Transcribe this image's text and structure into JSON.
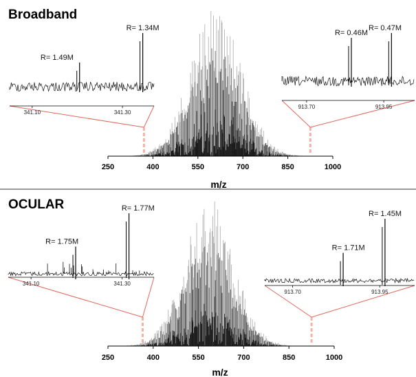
{
  "colors": {
    "spectrum_dark": "#111111",
    "spectrum_mid": "#555555",
    "spectrum_light": "#aaaaaa",
    "zoom_line": "#e0665a",
    "marker": "#f2b3a8",
    "divider": "#333333"
  },
  "chart_data": [
    {
      "type": "line",
      "title": "Broadband",
      "xlabel": "m/z",
      "ylabel": "",
      "xlim": [
        250,
        1000
      ],
      "xticks": [
        "250",
        "400",
        "550",
        "700",
        "850",
        "1000"
      ],
      "tick_values": [
        250,
        400,
        550,
        700,
        850,
        1000
      ],
      "envelope": {
        "center": 610,
        "width": 120,
        "max_relative_intensity": 1.0
      },
      "zoom_markers": [
        {
          "mz": 370
        },
        {
          "mz": 925
        }
      ],
      "insets": [
        {
          "xlim": [
            341.05,
            341.37
          ],
          "xticks": [
            "341.10",
            "341.30"
          ],
          "tick_values": [
            341.1,
            341.3
          ],
          "peaks": [
            {
              "mz": 341.205,
              "relative_intensity": 0.45,
              "label": "R= 1.49M",
              "label_mz": 341.155
            },
            {
              "mz": 341.345,
              "relative_intensity": 1.0,
              "label": "R= 1.34M",
              "label_mz": 341.345
            }
          ]
        },
        {
          "xlim": [
            913.62,
            914.05
          ],
          "xticks": [
            "913.70",
            "913.95"
          ],
          "tick_values": [
            913.7,
            913.95
          ],
          "peaks": [
            {
              "mz": 913.845,
              "relative_intensity": 0.9,
              "label": "R= 0.46M",
              "label_mz": 913.845
            },
            {
              "mz": 913.975,
              "relative_intensity": 1.0,
              "label": "R= 0.47M",
              "label_mz": 914.0
            }
          ]
        }
      ]
    },
    {
      "type": "line",
      "title": "OCULAR",
      "xlabel": "m/z",
      "ylabel": "",
      "xlim": [
        250,
        1000
      ],
      "xticks": [
        "250",
        "400",
        "550",
        "700",
        "850",
        "1000"
      ],
      "tick_values": [
        250,
        400,
        550,
        700,
        850,
        1000
      ],
      "envelope": {
        "center": 585,
        "width": 115,
        "max_relative_intensity": 1.0
      },
      "zoom_markers": [
        {
          "mz": 365
        },
        {
          "mz": 925
        }
      ],
      "insets": [
        {
          "xlim": [
            341.05,
            341.37
          ],
          "xticks": [
            "341.10",
            "341.30"
          ],
          "tick_values": [
            341.1,
            341.3
          ],
          "peaks": [
            {
              "mz": 341.198,
              "relative_intensity": 0.45,
              "label": "R= 1.75M",
              "label_mz": 341.168
            },
            {
              "mz": 341.315,
              "relative_intensity": 1.0,
              "label": "R= 1.77M",
              "label_mz": 341.335
            }
          ]
        },
        {
          "xlim": [
            913.62,
            914.05
          ],
          "xticks": [
            "913.70",
            "913.95"
          ],
          "tick_values": [
            913.7,
            913.95
          ],
          "peaks": [
            {
              "mz": 913.845,
              "relative_intensity": 0.45,
              "label": "R= 1.71M",
              "label_mz": 913.86
            },
            {
              "mz": 913.965,
              "relative_intensity": 1.0,
              "label": "R= 1.45M",
              "label_mz": 914.0
            }
          ]
        }
      ]
    }
  ]
}
